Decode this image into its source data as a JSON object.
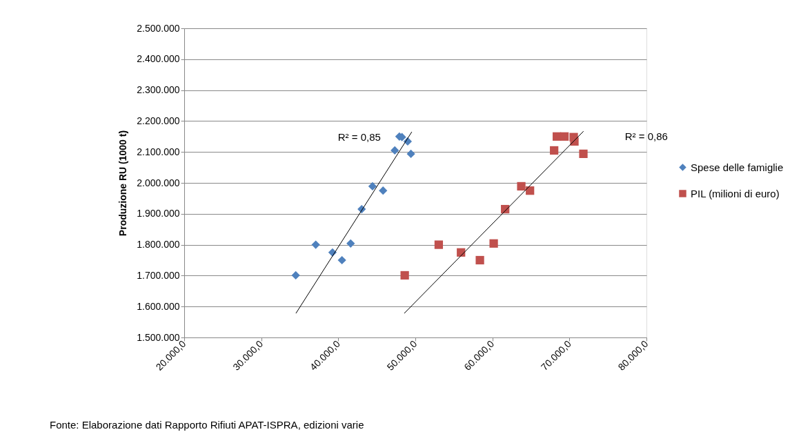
{
  "chart_data": {
    "type": "scatter",
    "ylabel": "Produzione RU (1000 t)",
    "xlim": [
      20000,
      80000
    ],
    "xticks": [
      {
        "value": 20000,
        "label": "20.000,0"
      },
      {
        "value": 30000,
        "label": "30.000,0"
      },
      {
        "value": 40000,
        "label": "40.000,0"
      },
      {
        "value": 50000,
        "label": "50.000,0"
      },
      {
        "value": 60000,
        "label": "60.000,0"
      },
      {
        "value": 70000,
        "label": "70.000,0"
      },
      {
        "value": 80000,
        "label": "80.000,0"
      }
    ],
    "ylim": [
      1500000,
      2500000
    ],
    "yticks": [
      {
        "value": 1500000,
        "label": "1.500.000"
      },
      {
        "value": 1600000,
        "label": "1.600.000"
      },
      {
        "value": 1700000,
        "label": "1.700.000"
      },
      {
        "value": 1800000,
        "label": "1.800.000"
      },
      {
        "value": 1900000,
        "label": "1.900.000"
      },
      {
        "value": 2000000,
        "label": "2.000.000"
      },
      {
        "value": 2100000,
        "label": "2.100.000"
      },
      {
        "value": 2200000,
        "label": "2.200.000"
      },
      {
        "value": 2300000,
        "label": "2.300.000"
      },
      {
        "value": 2400000,
        "label": "2.400.000"
      },
      {
        "value": 2500000,
        "label": "2.500.000"
      }
    ],
    "grid": "y",
    "legend": "right",
    "series": [
      {
        "name": "Spese delle famiglie",
        "color": "#4f81bd",
        "marker": "diamond",
        "x": [
          47930,
          48265,
          49008,
          47333,
          49428,
          44442,
          45812,
          43036,
          37073,
          41604,
          39249,
          40476,
          34477
        ],
        "values": [
          2150000,
          2148000,
          2134000,
          2105000,
          2094000,
          1989000,
          1975000,
          1915000,
          1800000,
          1804000,
          1775000,
          1750000,
          1701000
        ]
      },
      {
        "name": "PIL (milioni di euro)",
        "color": "#c0504d",
        "marker": "square",
        "x": [
          68372,
          69357,
          70557,
          70647,
          68015,
          71810,
          63752,
          64882,
          61657,
          53037,
          60172,
          55929,
          58381,
          48623
        ],
        "values": [
          2150000,
          2150000,
          2148000,
          2134000,
          2105000,
          2094000,
          1989000,
          1975000,
          1915000,
          1800000,
          1804000,
          1775000,
          1750000,
          1701000
        ]
      },
      {
        "type": "line",
        "color": "#000000",
        "x": [
          34500,
          49540
        ],
        "values": [
          1578000,
          2165000
        ]
      },
      {
        "type": "line",
        "color": "#000000",
        "x": [
          48560,
          71830
        ],
        "values": [
          1578000,
          2167000
        ]
      }
    ],
    "annotations": [
      "R² = 0,85",
      "R² = 0,86",
      "Fonte: Elaborazione dati Rapporto Rifiuti APAT-ISPRA, edizioni varie"
    ]
  }
}
